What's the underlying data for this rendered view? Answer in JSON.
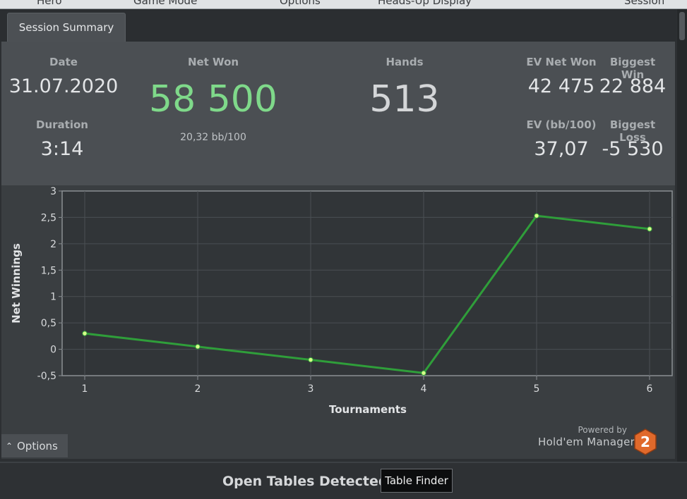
{
  "menubar": {
    "items": [
      "Hero",
      "Game Mode",
      "Options",
      "Heads-Up Display",
      "Session"
    ]
  },
  "tabs": [
    {
      "label": "Session Summary"
    }
  ],
  "summary": {
    "date_label": "Date",
    "date_value": "31.07.2020",
    "duration_label": "Duration",
    "duration_value": "3:14",
    "net_won_label": "Net Won",
    "net_won_value": "58 500",
    "net_won_rate": "20,32 bb/100",
    "hands_label": "Hands",
    "hands_value": "513",
    "ev_net_won_label": "EV Net Won",
    "ev_net_won_value": "42 475",
    "biggest_win_label": "Biggest Win",
    "biggest_win_value": "22 884",
    "ev_bb_label": "EV (bb/100)",
    "ev_bb_value": "37,07",
    "biggest_loss_label": "Biggest Loss",
    "biggest_loss_value": "-5 530"
  },
  "colors": {
    "net_won": "#7fd98a",
    "line": "#2f9e3a",
    "point": "#d6ff8a",
    "accent_logo": "#e0692b"
  },
  "chart_data": {
    "type": "line",
    "x": [
      1,
      2,
      3,
      4,
      5,
      6
    ],
    "series": [
      {
        "values": [
          0.3,
          0.05,
          -0.2,
          -0.45,
          2.53,
          2.28
        ]
      }
    ],
    "x_ticks": [
      "1",
      "2",
      "3",
      "4",
      "5",
      "6"
    ],
    "y_ticks": [
      "-0,5",
      "0",
      "0,5",
      "1",
      "1,5",
      "2",
      "2,5",
      "3"
    ],
    "xlabel": "Tournaments",
    "ylabel": "Net Winnings",
    "xlim": [
      0.8,
      6.2
    ],
    "ylim": [
      -0.5,
      3
    ],
    "grid": true
  },
  "chart_options": {
    "label": "Options",
    "caret": "⌃"
  },
  "branding": {
    "powered_by": "Powered by",
    "product": "Hold'em Manager",
    "logo_number": "2"
  },
  "footer": {
    "status": "Open Tables Detected",
    "table_finder_label": "Table Finder"
  }
}
